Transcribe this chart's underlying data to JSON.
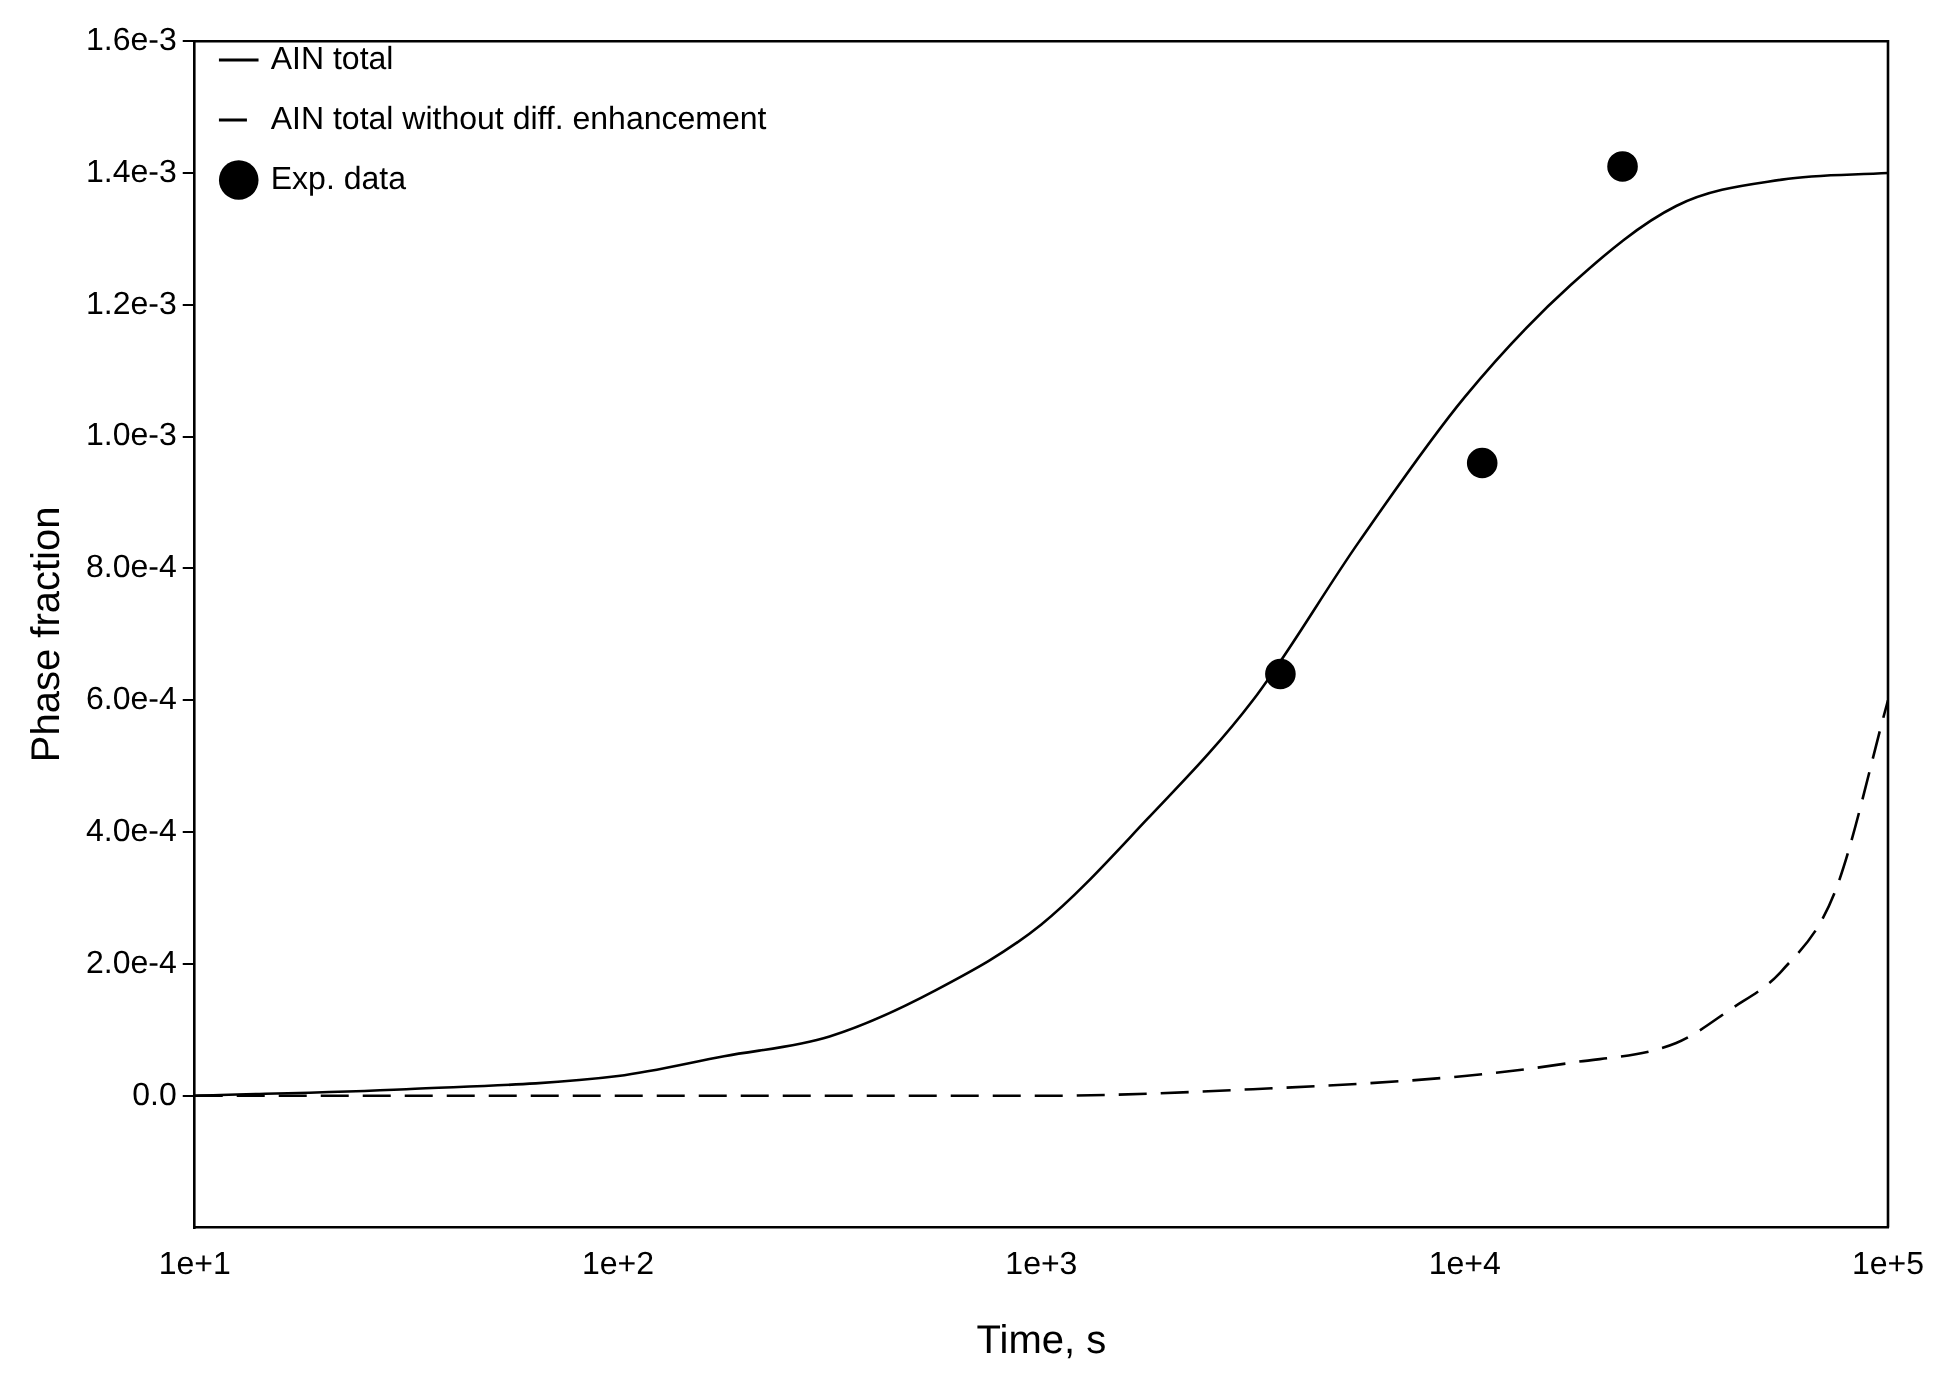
{
  "chart_data": {
    "type": "line",
    "xlabel": "Time, s",
    "ylabel": "Phase fraction",
    "log": "x",
    "grid": false,
    "legend": "top left",
    "xlim": [
      10,
      100000
    ],
    "xticks": [
      {
        "value": 10,
        "label": "1e+1"
      },
      {
        "value": 100,
        "label": "1e+2"
      },
      {
        "value": 1000,
        "label": "1e+3"
      },
      {
        "value": 10000,
        "label": "1e+4"
      },
      {
        "value": 100000,
        "label": "1e+5"
      }
    ],
    "ylim": [
      -0.0002,
      0.0016
    ],
    "yticks": [
      {
        "value": 0,
        "label": "0.0"
      },
      {
        "value": 0.0002,
        "label": "2.0e-4"
      },
      {
        "value": 0.0004,
        "label": "4.0e-4"
      },
      {
        "value": 0.0006,
        "label": "6.0e-4"
      },
      {
        "value": 0.0008,
        "label": "8.0e-4"
      },
      {
        "value": 0.001,
        "label": "1.0e-3"
      },
      {
        "value": 0.0012,
        "label": "1.2e-3"
      },
      {
        "value": 0.0014,
        "label": "1.4e-3"
      },
      {
        "value": 0.0016,
        "label": "1.6e-3"
      }
    ],
    "series": [
      {
        "name": "AIN total",
        "color": "#000000",
        "line_style": "solid",
        "marker": "none",
        "x": [
          10,
          31.6,
          100,
          178,
          316,
          562,
          1000,
          1780,
          3160,
          5620,
          10000,
          17800,
          31600,
          56200,
          100000
        ],
        "values": [
          0,
          1e-05,
          3e-05,
          6e-05,
          9e-05,
          0.00016,
          0.00026,
          0.00042,
          0.0006,
          0.00084,
          0.00106,
          0.00123,
          0.00135,
          0.00139,
          0.0014
        ]
      },
      {
        "name": "AIN total without diff. enhancement",
        "color": "#000000",
        "line_style": "dashed",
        "marker": "none",
        "x": [
          10,
          100,
          1000,
          3160,
          10000,
          17800,
          31600,
          42200,
          56200,
          75000,
          100000
        ],
        "values": [
          0,
          0,
          0,
          1e-05,
          3e-05,
          5e-05,
          8e-05,
          0.00013,
          0.00019,
          0.00031,
          0.0006
        ]
      },
      {
        "name": "Exp. data",
        "type": "scatter",
        "color": "#000000",
        "marker": "circle",
        "x": [
          3670,
          11000,
          23600
        ],
        "values": [
          0.00064,
          0.00096,
          0.00141
        ]
      }
    ]
  }
}
